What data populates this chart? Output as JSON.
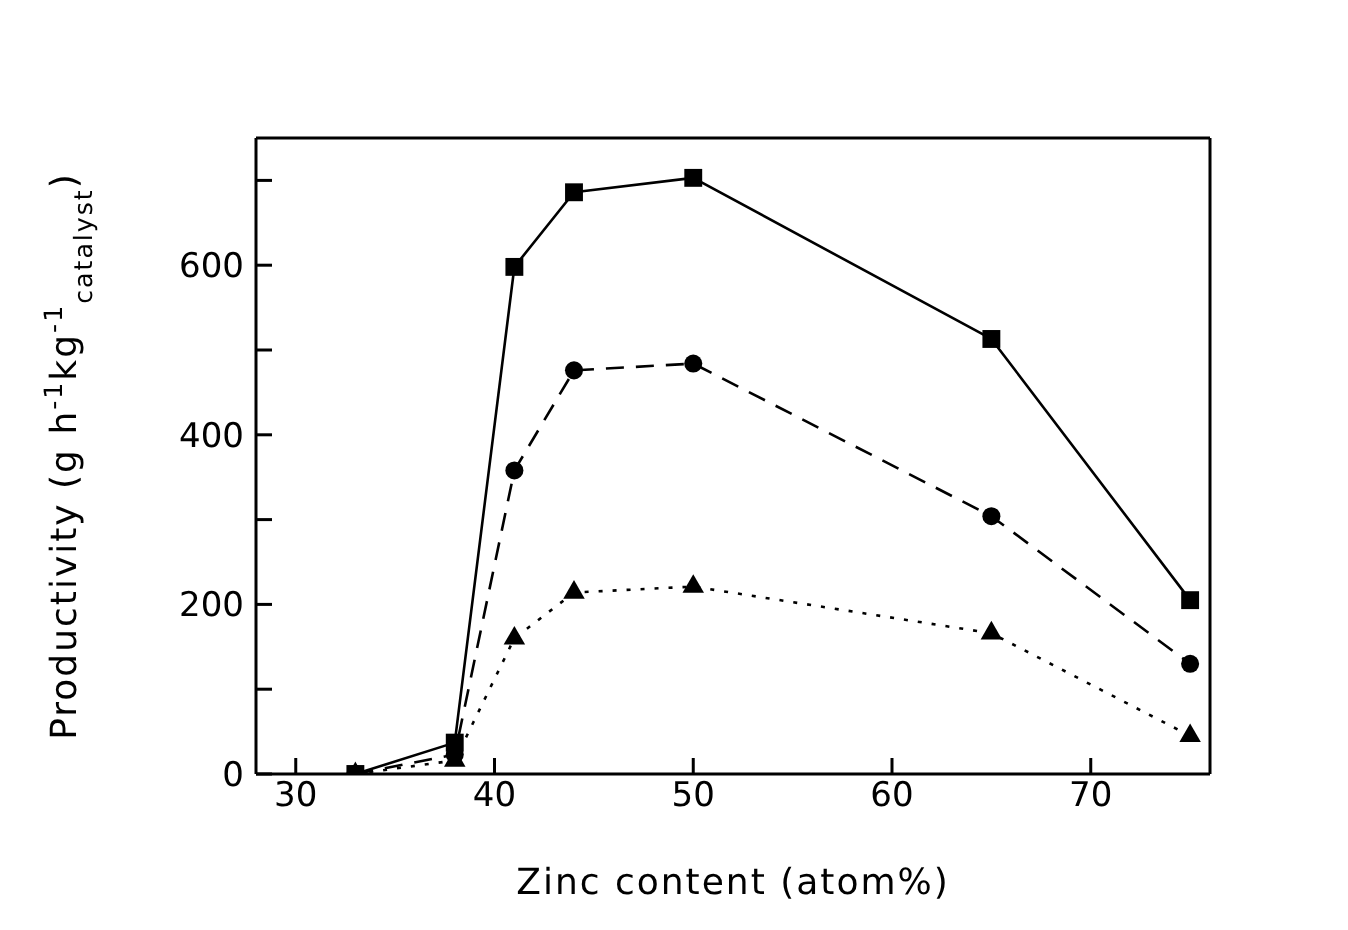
{
  "chart_data": {
    "type": "line",
    "xlabel": "Zinc content (atom%)",
    "ylabel": "Productivity (g h$^{-1}$kg$^{-1}$$_{catalyst}$)",
    "x": [
      33,
      38,
      41,
      44,
      50,
      65,
      75
    ],
    "series": [
      {
        "color": "#000000",
        "marker": "square",
        "line_style": "solid",
        "values": [
          0,
          37,
          598,
          686,
          703,
          513,
          205
        ]
      },
      {
        "color": "#000000",
        "marker": "circle",
        "line_style": "dashed",
        "values": [
          0,
          23,
          358,
          476,
          484,
          304,
          130
        ]
      },
      {
        "color": "#000000",
        "marker": "triangle",
        "line_style": "dotted",
        "values": [
          0,
          16,
          160,
          214,
          221,
          166,
          45
        ]
      }
    ],
    "xlim": [
      28,
      76
    ],
    "xticks": [
      30,
      40,
      50,
      60,
      70
    ],
    "ylim": [
      0,
      750
    ],
    "yticks": [
      0,
      {
        "value": 100,
        "label": null
      },
      200,
      {
        "value": 300,
        "label": null
      },
      400,
      {
        "value": 500,
        "label": null
      },
      600,
      {
        "value": 700,
        "label": null
      }
    ],
    "grid": false,
    "legend": false
  }
}
